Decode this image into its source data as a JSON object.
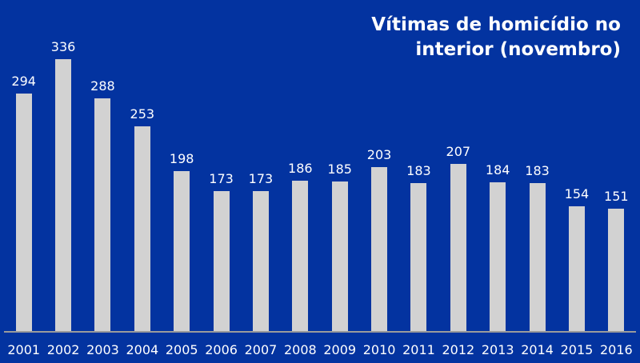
{
  "header": {
    "title_line1": "Vítimas de homicídio no",
    "title_line2": "interior (novembro)"
  },
  "chart_data": {
    "type": "bar",
    "title": "Vítimas de homicídio no interior (novembro)",
    "categories": [
      "2001",
      "2002",
      "2003",
      "2004",
      "2005",
      "2006",
      "2007",
      "2008",
      "2009",
      "2010",
      "2011",
      "2012",
      "2013",
      "2014",
      "2015",
      "2016"
    ],
    "values": [
      294,
      336,
      288,
      253,
      198,
      173,
      173,
      186,
      185,
      203,
      183,
      207,
      184,
      183,
      154,
      151
    ],
    "xlabel": "",
    "ylabel": "",
    "ylim": [
      0,
      336
    ],
    "grid": false,
    "legend": false,
    "data_labels": true,
    "colors": {
      "background": "#0333a0",
      "bar": "#d2d2d2",
      "label": "#ffffff",
      "title": "#ffffff",
      "axis_line": "#9b9b9b"
    }
  }
}
